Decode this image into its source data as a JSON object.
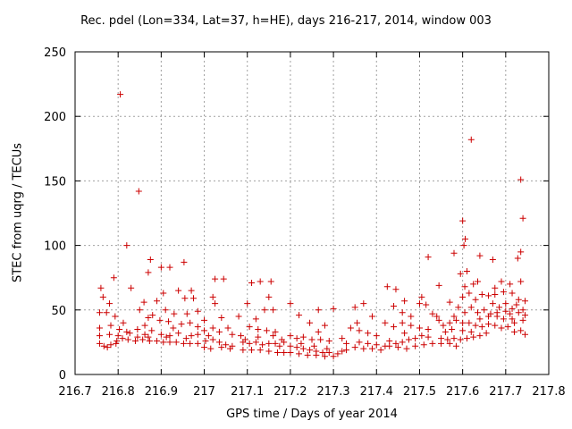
{
  "chart_data": {
    "type": "scatter",
    "title": "Rec. pdel (Lon=334, Lat=37, h=HE), days 216-217, 2014, window 003",
    "xlabel": "GPS time / Days of year 2014",
    "ylabel": "STEC from uqrg / TECUs",
    "xlim": [
      216.7,
      217.8
    ],
    "ylim": [
      0,
      250
    ],
    "xticks": [
      216.7,
      216.8,
      216.9,
      217,
      217.1,
      217.2,
      217.3,
      217.4,
      217.5,
      217.6,
      217.7,
      217.8
    ],
    "xtick_labels": [
      "216.7",
      "216.8",
      "216.9",
      "217",
      "217.1",
      "217.2",
      "217.3",
      "217.4",
      "217.5",
      "217.6",
      "217.7",
      "217.8"
    ],
    "yticks": [
      0,
      50,
      100,
      150,
      200,
      250
    ],
    "ytick_labels": [
      "0",
      "50",
      "100",
      "150",
      "200",
      "250"
    ],
    "grid": true,
    "marker": "+",
    "color": "#cc0000",
    "points": [
      [
        216.805,
        217
      ],
      [
        216.848,
        142
      ],
      [
        216.82,
        100
      ],
      [
        216.875,
        89
      ],
      [
        216.953,
        87
      ],
      [
        216.79,
        75
      ],
      [
        216.76,
        67
      ],
      [
        216.83,
        67
      ],
      [
        216.87,
        79
      ],
      [
        216.92,
        83
      ],
      [
        216.9,
        83
      ],
      [
        216.94,
        65
      ],
      [
        216.97,
        65
      ],
      [
        216.765,
        60
      ],
      [
        216.78,
        55
      ],
      [
        216.86,
        56
      ],
      [
        216.89,
        57
      ],
      [
        216.905,
        63
      ],
      [
        216.955,
        59
      ],
      [
        216.975,
        59
      ],
      [
        216.757,
        48
      ],
      [
        216.773,
        48
      ],
      [
        216.793,
        45
      ],
      [
        216.812,
        40
      ],
      [
        216.85,
        50
      ],
      [
        216.88,
        46
      ],
      [
        216.91,
        50
      ],
      [
        216.93,
        47
      ],
      [
        216.96,
        47
      ],
      [
        216.985,
        49
      ],
      [
        216.757,
        36
      ],
      [
        216.783,
        38
      ],
      [
        216.803,
        35
      ],
      [
        216.827,
        32
      ],
      [
        216.845,
        35
      ],
      [
        216.862,
        38
      ],
      [
        216.897,
        42
      ],
      [
        216.917,
        41
      ],
      [
        216.947,
        39
      ],
      [
        216.967,
        40
      ],
      [
        216.985,
        37
      ],
      [
        216.757,
        30
      ],
      [
        216.78,
        31
      ],
      [
        216.8,
        30
      ],
      [
        216.82,
        33
      ],
      [
        216.845,
        29
      ],
      [
        216.87,
        29
      ],
      [
        216.9,
        31
      ],
      [
        216.92,
        30
      ],
      [
        216.94,
        32
      ],
      [
        216.97,
        30
      ],
      [
        216.985,
        31
      ],
      [
        216.757,
        24
      ],
      [
        216.767,
        22
      ],
      [
        216.783,
        23
      ],
      [
        216.797,
        26
      ],
      [
        216.81,
        28
      ],
      [
        216.823,
        27
      ],
      [
        216.84,
        26
      ],
      [
        216.857,
        27
      ],
      [
        216.873,
        26
      ],
      [
        216.89,
        26
      ],
      [
        216.905,
        25
      ],
      [
        216.92,
        25
      ],
      [
        216.935,
        25
      ],
      [
        216.952,
        24
      ],
      [
        216.967,
        24
      ],
      [
        216.985,
        24
      ],
      [
        216.775,
        21
      ],
      [
        216.795,
        24
      ],
      [
        216.862,
        31
      ],
      [
        216.912,
        29
      ],
      [
        216.958,
        28
      ],
      [
        216.878,
        34
      ],
      [
        216.928,
        36
      ],
      [
        216.87,
        44
      ],
      [
        217.025,
        74
      ],
      [
        217.045,
        74
      ],
      [
        217.0,
        42
      ],
      [
        217.02,
        60
      ],
      [
        217.025,
        55
      ],
      [
        217.04,
        44
      ],
      [
        217.055,
        36
      ],
      [
        217.065,
        31
      ],
      [
        217.0,
        34
      ],
      [
        217.01,
        30
      ],
      [
        217.02,
        27
      ],
      [
        217.035,
        25
      ],
      [
        217.05,
        23
      ],
      [
        217.065,
        22
      ],
      [
        217.0,
        21
      ],
      [
        217.015,
        20
      ],
      [
        217.04,
        21
      ],
      [
        217.06,
        20
      ],
      [
        217.02,
        36
      ],
      [
        217.003,
        26
      ],
      [
        217.035,
        33
      ],
      [
        217.08,
        45
      ],
      [
        217.085,
        30
      ],
      [
        217.095,
        27
      ],
      [
        217.11,
        71
      ],
      [
        217.13,
        72
      ],
      [
        217.155,
        72
      ],
      [
        217.1,
        55
      ],
      [
        217.12,
        43
      ],
      [
        217.14,
        50
      ],
      [
        217.15,
        60
      ],
      [
        217.16,
        50
      ],
      [
        217.105,
        37
      ],
      [
        217.125,
        35
      ],
      [
        217.145,
        34
      ],
      [
        217.165,
        33
      ],
      [
        217.09,
        25
      ],
      [
        217.105,
        24
      ],
      [
        217.12,
        25
      ],
      [
        217.135,
        23
      ],
      [
        217.15,
        24
      ],
      [
        217.165,
        24
      ],
      [
        217.175,
        22
      ],
      [
        217.09,
        19
      ],
      [
        217.11,
        19
      ],
      [
        217.13,
        19
      ],
      [
        217.15,
        18
      ],
      [
        217.17,
        17
      ],
      [
        217.185,
        17
      ],
      [
        217.185,
        25
      ],
      [
        217.125,
        29
      ],
      [
        217.18,
        27
      ],
      [
        217.16,
        30
      ],
      [
        217.2,
        55
      ],
      [
        217.22,
        46
      ],
      [
        217.245,
        40
      ],
      [
        217.265,
        50
      ],
      [
        217.28,
        38
      ],
      [
        217.3,
        51
      ],
      [
        217.2,
        30
      ],
      [
        217.215,
        28
      ],
      [
        217.23,
        29
      ],
      [
        217.25,
        27
      ],
      [
        217.27,
        27
      ],
      [
        217.29,
        26
      ],
      [
        217.2,
        22
      ],
      [
        217.215,
        21
      ],
      [
        217.23,
        20
      ],
      [
        217.245,
        19
      ],
      [
        217.26,
        18
      ],
      [
        217.275,
        17
      ],
      [
        217.29,
        17
      ],
      [
        217.2,
        17
      ],
      [
        217.22,
        16
      ],
      [
        217.24,
        15
      ],
      [
        217.26,
        15
      ],
      [
        217.28,
        14
      ],
      [
        217.3,
        14
      ],
      [
        217.31,
        16
      ],
      [
        217.265,
        33
      ],
      [
        217.285,
        20
      ],
      [
        217.255,
        22
      ],
      [
        217.225,
        24
      ],
      [
        217.32,
        18
      ],
      [
        217.33,
        19
      ],
      [
        217.35,
        21
      ],
      [
        217.37,
        20
      ],
      [
        217.39,
        20
      ],
      [
        217.41,
        19
      ],
      [
        217.32,
        28
      ],
      [
        217.34,
        36
      ],
      [
        217.36,
        34
      ],
      [
        217.38,
        32
      ],
      [
        217.4,
        30
      ],
      [
        217.35,
        52
      ],
      [
        217.37,
        55
      ],
      [
        217.39,
        45
      ],
      [
        217.42,
        40
      ],
      [
        217.33,
        24
      ],
      [
        217.36,
        25
      ],
      [
        217.38,
        24
      ],
      [
        217.4,
        23
      ],
      [
        217.42,
        22
      ],
      [
        217.355,
        40
      ],
      [
        217.425,
        68
      ],
      [
        217.445,
        66
      ],
      [
        217.465,
        57
      ],
      [
        217.44,
        53
      ],
      [
        217.46,
        48
      ],
      [
        217.48,
        45
      ],
      [
        217.5,
        55
      ],
      [
        217.515,
        54
      ],
      [
        217.43,
        26
      ],
      [
        217.445,
        24
      ],
      [
        217.46,
        25
      ],
      [
        217.475,
        27
      ],
      [
        217.49,
        28
      ],
      [
        217.505,
        30
      ],
      [
        217.52,
        29
      ],
      [
        217.43,
        22
      ],
      [
        217.45,
        21
      ],
      [
        217.47,
        20
      ],
      [
        217.49,
        22
      ],
      [
        217.51,
        23
      ],
      [
        217.53,
        24
      ],
      [
        217.44,
        37
      ],
      [
        217.46,
        40
      ],
      [
        217.48,
        38
      ],
      [
        217.5,
        36
      ],
      [
        217.52,
        35
      ],
      [
        217.505,
        60
      ],
      [
        217.52,
        91
      ],
      [
        217.545,
        69
      ],
      [
        217.53,
        47
      ],
      [
        217.545,
        42
      ],
      [
        217.465,
        32
      ],
      [
        217.6,
        119
      ],
      [
        217.603,
        100
      ],
      [
        217.606,
        105
      ],
      [
        217.62,
        182
      ],
      [
        217.64,
        92
      ],
      [
        217.58,
        94
      ],
      [
        217.595,
        78
      ],
      [
        217.61,
        80
      ],
      [
        217.625,
        70
      ],
      [
        217.6,
        60
      ],
      [
        217.615,
        63
      ],
      [
        217.63,
        58
      ],
      [
        217.645,
        62
      ],
      [
        217.66,
        61
      ],
      [
        217.57,
        56
      ],
      [
        217.58,
        45
      ],
      [
        217.59,
        52
      ],
      [
        217.605,
        48
      ],
      [
        217.62,
        52
      ],
      [
        217.635,
        48
      ],
      [
        217.65,
        50
      ],
      [
        217.665,
        47
      ],
      [
        217.555,
        38
      ],
      [
        217.57,
        40
      ],
      [
        217.585,
        42
      ],
      [
        217.6,
        40
      ],
      [
        217.615,
        40
      ],
      [
        217.63,
        38
      ],
      [
        217.645,
        37
      ],
      [
        217.66,
        39
      ],
      [
        217.55,
        28
      ],
      [
        217.565,
        27
      ],
      [
        217.58,
        28
      ],
      [
        217.595,
        27
      ],
      [
        217.61,
        28
      ],
      [
        217.625,
        29
      ],
      [
        217.64,
        30
      ],
      [
        217.655,
        32
      ],
      [
        217.55,
        24
      ],
      [
        217.57,
        24
      ],
      [
        217.585,
        22
      ],
      [
        217.54,
        45
      ],
      [
        217.56,
        33
      ],
      [
        217.575,
        35
      ],
      [
        217.6,
        34
      ],
      [
        217.62,
        33
      ],
      [
        217.64,
        43
      ],
      [
        217.66,
        45
      ],
      [
        217.605,
        68
      ],
      [
        217.635,
        72
      ],
      [
        217.735,
        151
      ],
      [
        217.74,
        121
      ],
      [
        217.735,
        95
      ],
      [
        217.728,
        90
      ],
      [
        217.67,
        89
      ],
      [
        217.69,
        72
      ],
      [
        217.71,
        70
      ],
      [
        217.735,
        72
      ],
      [
        217.675,
        62
      ],
      [
        217.695,
        64
      ],
      [
        217.715,
        63
      ],
      [
        217.73,
        58
      ],
      [
        217.745,
        57
      ],
      [
        217.67,
        55
      ],
      [
        217.685,
        52
      ],
      [
        217.7,
        55
      ],
      [
        217.715,
        51
      ],
      [
        217.725,
        54
      ],
      [
        217.74,
        50
      ],
      [
        217.745,
        46
      ],
      [
        217.68,
        45
      ],
      [
        217.695,
        43
      ],
      [
        217.71,
        47
      ],
      [
        217.72,
        40
      ],
      [
        217.74,
        42
      ],
      [
        217.675,
        38
      ],
      [
        217.69,
        36
      ],
      [
        217.705,
        37
      ],
      [
        217.72,
        33
      ],
      [
        217.735,
        34
      ],
      [
        217.745,
        31
      ],
      [
        217.68,
        48
      ],
      [
        217.7,
        49
      ],
      [
        217.73,
        48
      ],
      [
        217.675,
        67
      ],
      [
        217.715,
        43
      ]
    ]
  }
}
